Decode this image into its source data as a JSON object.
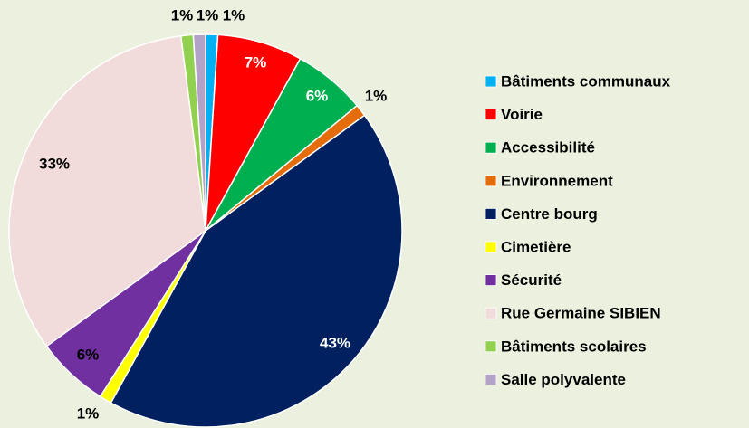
{
  "chart_data": {
    "type": "pie",
    "categories": [
      "Bâtiments communaux",
      "Voirie",
      "Accessibilité",
      "Environnement",
      "Centre bourg",
      "Cimetière",
      "Sécurité",
      "Rue Germaine SIBIEN",
      "Bâtiments scolaires",
      "Salle polyvalente"
    ],
    "values": [
      1,
      7,
      6,
      1,
      43,
      1,
      6,
      33,
      1,
      1
    ],
    "value_labels": [
      "1%",
      "7%",
      "6%",
      "1%",
      "43%",
      "1%",
      "6%",
      "33%",
      "1%",
      "1%"
    ],
    "colors": [
      "#00b0f0",
      "#ff0000",
      "#00b050",
      "#e46c0a",
      "#002060",
      "#ffff00",
      "#7030a0",
      "#f2dcdb",
      "#92d050",
      "#b3a2c7"
    ],
    "legend": "right"
  }
}
